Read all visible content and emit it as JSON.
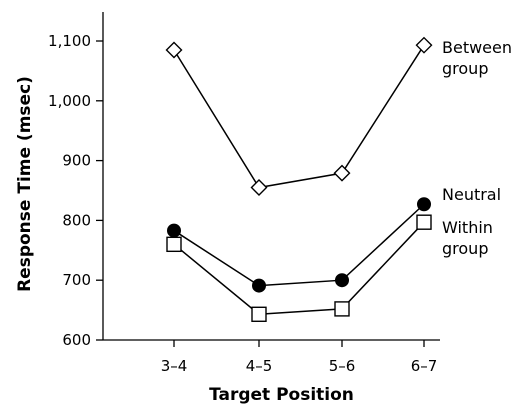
{
  "chart_data": {
    "type": "line",
    "xlabel": "Target Position",
    "ylabel": "Response Time (msec)",
    "categories": [
      "3–4",
      "4–5",
      "5–6",
      "6–7"
    ],
    "yticks": [
      600,
      700,
      800,
      900,
      1000,
      1100
    ],
    "ytick_labels": [
      "600",
      "700",
      "800",
      "900",
      "1,000",
      "1,100"
    ],
    "ylim": [
      600,
      1150
    ],
    "grid": false,
    "series": [
      {
        "name": "Between group",
        "label_lines": [
          "Between",
          "group"
        ],
        "marker": "open-diamond",
        "values": [
          1085,
          855,
          879,
          1093
        ]
      },
      {
        "name": "Neutral",
        "label_lines": [
          "Neutral"
        ],
        "marker": "filled-circle",
        "values": [
          783,
          691,
          700,
          827
        ]
      },
      {
        "name": "Within group",
        "label_lines": [
          "Within",
          "group"
        ],
        "marker": "open-square",
        "values": [
          760,
          643,
          652,
          797
        ]
      }
    ]
  }
}
